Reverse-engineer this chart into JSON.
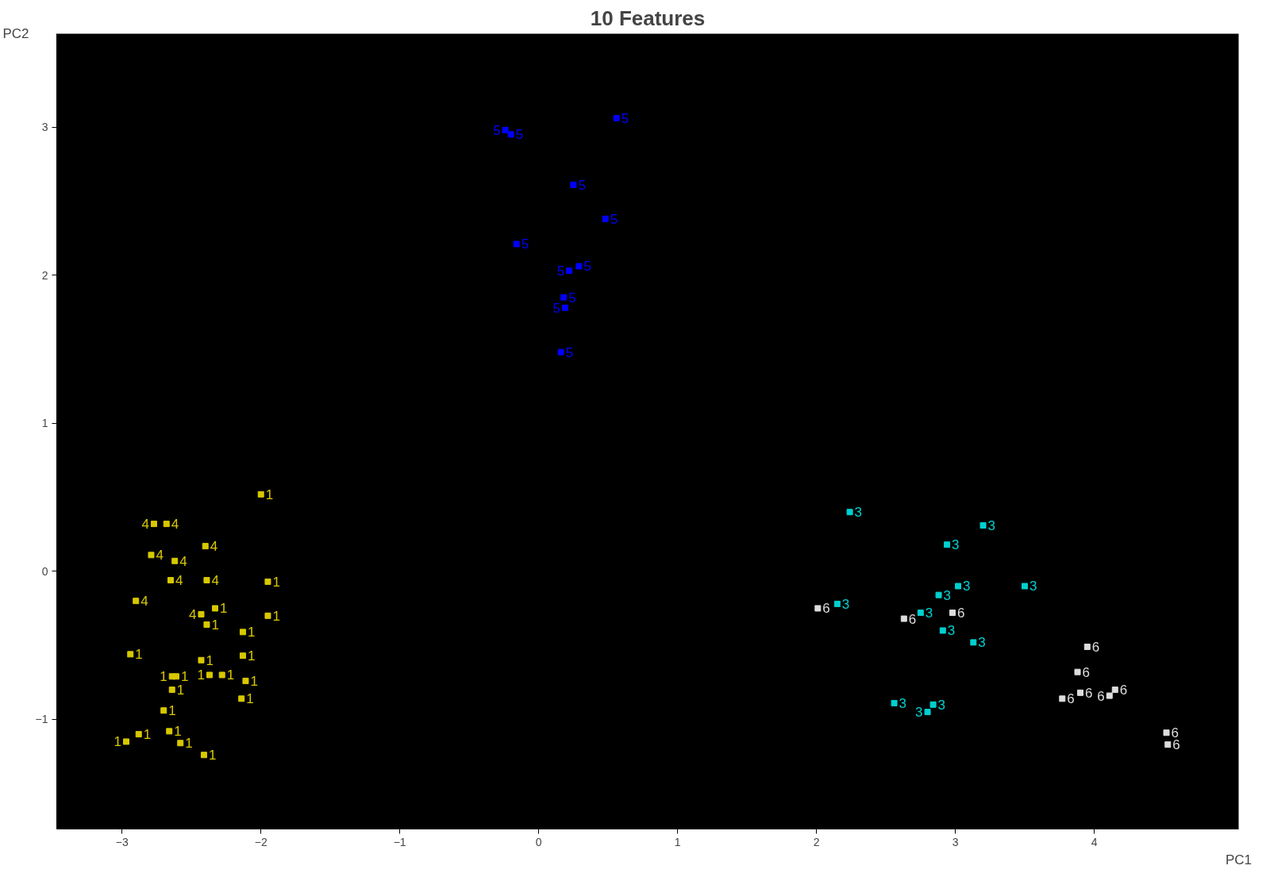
{
  "chart_data": {
    "type": "scatter",
    "title": "10 Features",
    "xlabel": "PC1",
    "ylabel": "PC2",
    "xlim": [
      -3.47,
      5.04
    ],
    "ylim": [
      -1.74,
      3.63
    ],
    "xticks": [
      -3,
      -2,
      -1,
      0,
      1,
      2,
      3,
      4
    ],
    "yticks": [
      -1,
      0,
      1,
      2,
      3
    ],
    "grid": false,
    "legend": false,
    "marker": "square",
    "series": [
      {
        "name": "5",
        "color": "#0000ff",
        "x": [
          -0.24,
          -0.2,
          0.56,
          0.25,
          0.48,
          -0.16,
          0.22,
          0.29,
          0.18,
          0.19,
          0.16
        ],
        "values": [
          2.98,
          2.95,
          3.06,
          2.61,
          2.38,
          2.21,
          2.03,
          2.06,
          1.85,
          1.78,
          1.48
        ]
      },
      {
        "name": "1",
        "color": "#d8c800",
        "x": [
          -2.0,
          -1.95,
          -1.95,
          -2.13,
          -2.13,
          -2.11,
          -2.14,
          -2.33,
          -2.39,
          -2.43,
          -2.37,
          -2.28,
          -2.64,
          -2.61,
          -2.64,
          -2.7,
          -2.66,
          -2.58,
          -2.41,
          -2.88,
          -2.97,
          -2.94
        ],
        "values": [
          0.52,
          -0.07,
          -0.3,
          -0.41,
          -0.57,
          -0.74,
          -0.86,
          -0.25,
          -0.36,
          -0.6,
          -0.7,
          -0.7,
          -0.71,
          -0.71,
          -0.8,
          -0.94,
          -1.08,
          -1.16,
          -1.24,
          -1.1,
          -1.15,
          -0.56
        ]
      },
      {
        "name": "4",
        "color": "#d8c800",
        "x": [
          -2.77,
          -2.68,
          -2.4,
          -2.79,
          -2.62,
          -2.65,
          -2.39,
          -2.9,
          -2.43
        ],
        "values": [
          0.32,
          0.32,
          0.17,
          0.11,
          0.07,
          -0.06,
          -0.06,
          -0.2,
          -0.29
        ]
      },
      {
        "name": "3",
        "color": "#00d0d0",
        "x": [
          2.24,
          3.2,
          2.94,
          3.02,
          3.5,
          2.88,
          2.15,
          2.75,
          2.91,
          3.13,
          2.56,
          2.84,
          2.8
        ],
        "values": [
          0.4,
          0.31,
          0.18,
          -0.1,
          -0.1,
          -0.16,
          -0.22,
          -0.28,
          -0.4,
          -0.48,
          -0.89,
          -0.9,
          -0.95
        ]
      },
      {
        "name": "6",
        "color": "#dddddd",
        "x": [
          2.01,
          2.63,
          2.98,
          3.95,
          3.88,
          3.9,
          3.77,
          4.15,
          4.11,
          4.52,
          4.53
        ],
        "values": [
          -0.25,
          -0.32,
          -0.28,
          -0.51,
          -0.68,
          -0.82,
          -0.86,
          -0.8,
          -0.84,
          -1.09,
          -1.17
        ]
      }
    ]
  }
}
